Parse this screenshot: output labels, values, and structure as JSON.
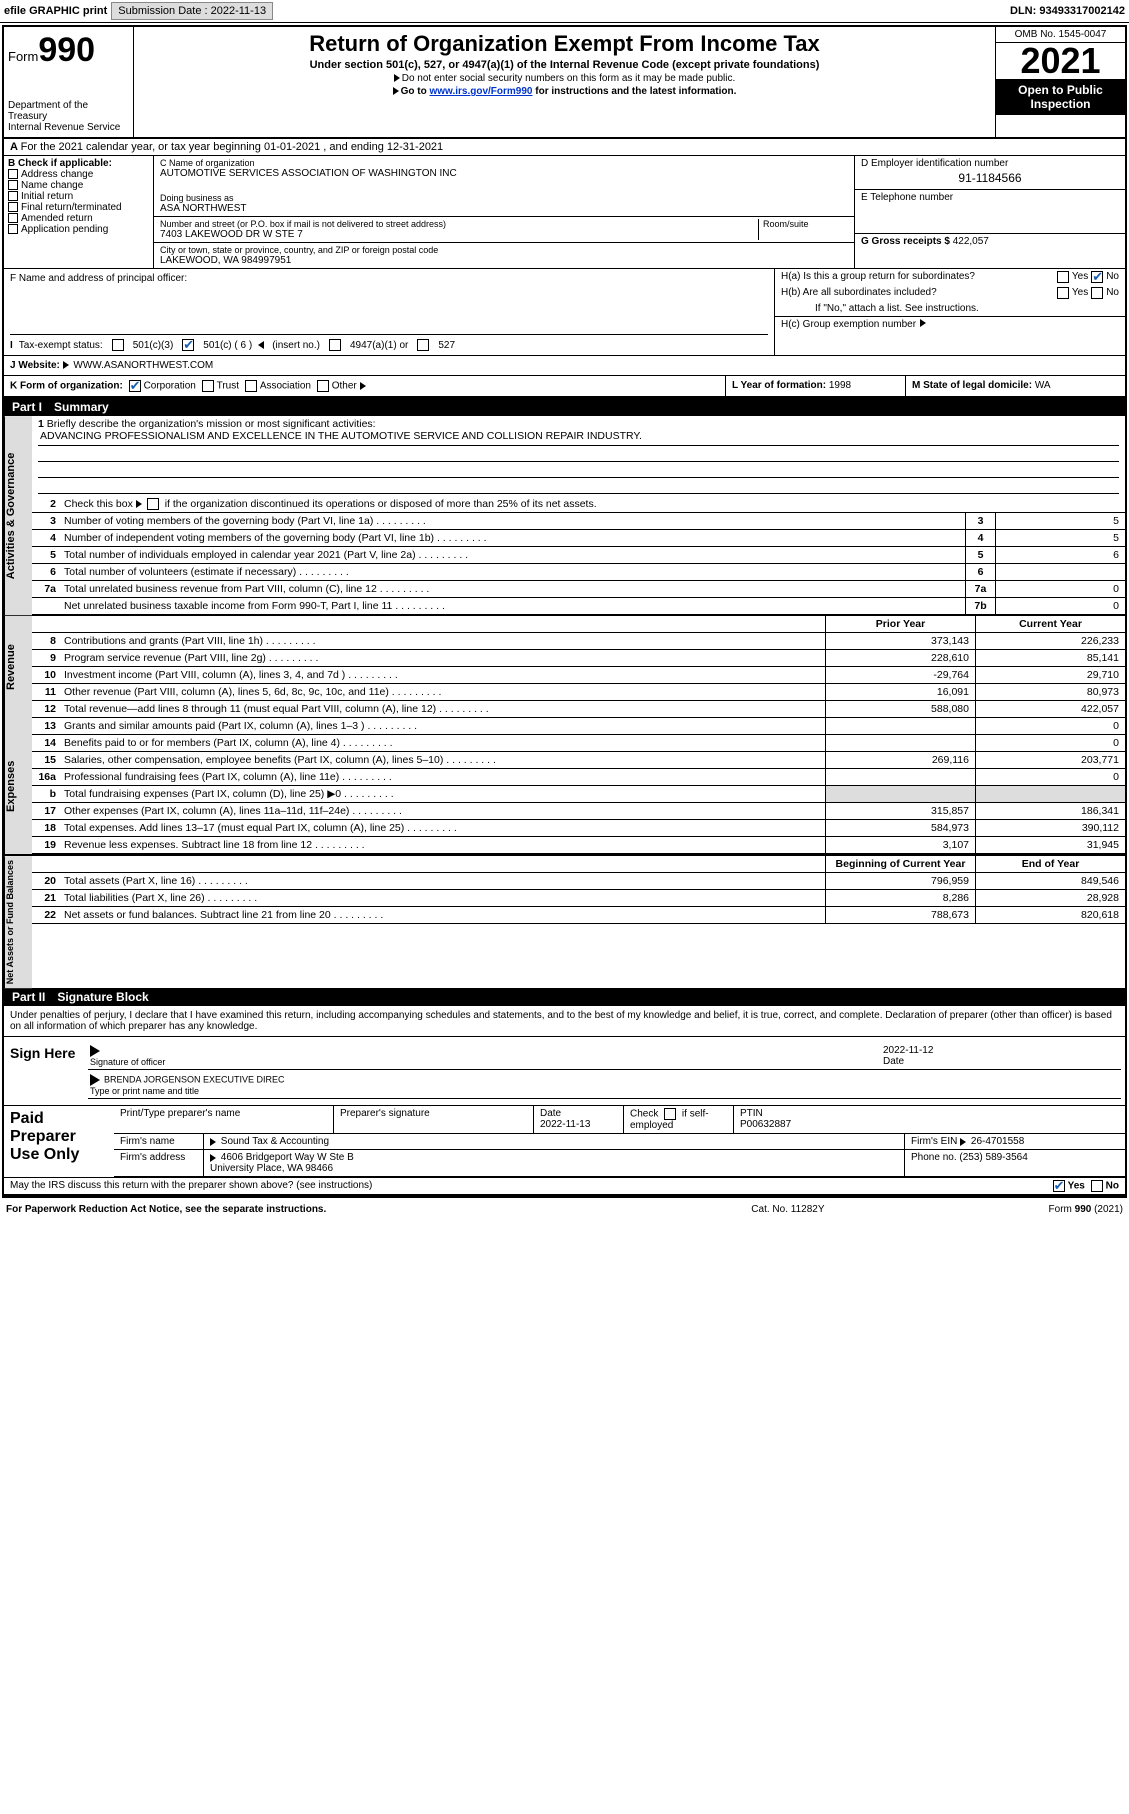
{
  "topbar": {
    "efile": "efile GRAPHIC print",
    "subm_lbl": "Submission Date :",
    "subm_date": "2022-11-13",
    "dln": "DLN: 93493317002142"
  },
  "hdr": {
    "form": "Form",
    "num": "990",
    "dept": "Department of the Treasury",
    "irs": "Internal Revenue Service",
    "title": "Return of Organization Exempt From Income Tax",
    "sub": "Under section 501(c), 527, or 4947(a)(1) of the Internal Revenue Code (except private foundations)",
    "note1": "Do not enter social security numbers on this form as it may be made public.",
    "note2_pre": "Go to ",
    "note2_link": "www.irs.gov/Form990",
    "note2_post": " for instructions and the latest information.",
    "omb": "OMB No. 1545-0047",
    "year": "2021",
    "open": "Open to Public Inspection"
  },
  "A": {
    "text": "For the 2021 calendar year, or tax year beginning 01-01-2021    , and ending 12-31-2021"
  },
  "B": {
    "hdr": "B Check if applicable:",
    "items": [
      "Address change",
      "Name change",
      "Initial return",
      "Final return/terminated",
      "Amended return",
      "Application pending"
    ]
  },
  "C": {
    "name_lbl": "C Name of organization",
    "name": "AUTOMOTIVE SERVICES ASSOCIATION OF WASHINGTON INC",
    "dba_lbl": "Doing business as",
    "dba": "ASA NORTHWEST",
    "addr_lbl": "Number and street (or P.O. box if mail is not delivered to street address)",
    "room_lbl": "Room/suite",
    "addr": "7403 LAKEWOOD DR W STE 7",
    "city_lbl": "City or town, state or province, country, and ZIP or foreign postal code",
    "city": "LAKEWOOD, WA  984997951"
  },
  "D": {
    "lbl": "D Employer identification number",
    "val": "91-1184566"
  },
  "E": {
    "lbl": "E Telephone number",
    "val": ""
  },
  "G": {
    "lbl": "G Gross receipts $",
    "val": "422,057"
  },
  "F": {
    "lbl": "F  Name and address of principal officer:"
  },
  "H": {
    "a": "H(a)  Is this a group return for subordinates?",
    "a_no": "No",
    "a_yes": "Yes",
    "b": "H(b)  Are all subordinates included?",
    "b_yes": "Yes",
    "b_no": "No",
    "b_note": "If \"No,\" attach a list. See instructions.",
    "c": "H(c)  Group exemption number"
  },
  "I": {
    "lbl": "Tax-exempt status:",
    "o1": "501(c)(3)",
    "o2": "501(c) ( 6 )",
    "ins": "(insert no.)",
    "o3": "4947(a)(1) or",
    "o4": "527"
  },
  "J": {
    "lbl": "Website:",
    "val": "WWW.ASANORTHWEST.COM"
  },
  "K": {
    "lbl": "K Form of organization:",
    "c": "Corporation",
    "t": "Trust",
    "a": "Association",
    "o": "Other"
  },
  "L": {
    "lbl": "L Year of formation:",
    "val": "1998"
  },
  "M": {
    "lbl": "M State of legal domicile:",
    "val": "WA"
  },
  "parts": {
    "p1": "Part I",
    "p1t": "Summary",
    "p2": "Part II",
    "p2t": "Signature Block"
  },
  "sections": {
    "gov": "Activities & Governance",
    "rev": "Revenue",
    "exp": "Expenses",
    "net": "Net Assets or Fund Balances"
  },
  "s1": {
    "l1": "Briefly describe the organization's mission or most significant activities:",
    "l1v": "ADVANCING PROFESSIONALISM AND EXCELLENCE IN THE AUTOMOTIVE SERVICE AND COLLISION REPAIR INDUSTRY.",
    "l2": "Check this box     if the organization discontinued its operations or disposed of more than 25% of its net assets.",
    "rows": [
      {
        "n": "3",
        "t": "Number of voting members of the governing body (Part VI, line 1a)",
        "b": "3",
        "v": "5"
      },
      {
        "n": "4",
        "t": "Number of independent voting members of the governing body (Part VI, line 1b)",
        "b": "4",
        "v": "5"
      },
      {
        "n": "5",
        "t": "Total number of individuals employed in calendar year 2021 (Part V, line 2a)",
        "b": "5",
        "v": "6"
      },
      {
        "n": "6",
        "t": "Total number of volunteers (estimate if necessary)",
        "b": "6",
        "v": ""
      },
      {
        "n": "7a",
        "t": "Total unrelated business revenue from Part VIII, column (C), line 12",
        "b": "7a",
        "v": "0"
      },
      {
        "n": "",
        "t": "Net unrelated business taxable income from Form 990-T, Part I, line 11",
        "b": "7b",
        "v": "0"
      }
    ],
    "colh": {
      "py": "Prior Year",
      "cy": "Current Year",
      "bcy": "Beginning of Current Year",
      "eoy": "End of Year"
    },
    "rev": [
      {
        "n": "8",
        "t": "Contributions and grants (Part VIII, line 1h)",
        "p": "373,143",
        "c": "226,233"
      },
      {
        "n": "9",
        "t": "Program service revenue (Part VIII, line 2g)",
        "p": "228,610",
        "c": "85,141"
      },
      {
        "n": "10",
        "t": "Investment income (Part VIII, column (A), lines 3, 4, and 7d )",
        "p": "-29,764",
        "c": "29,710"
      },
      {
        "n": "11",
        "t": "Other revenue (Part VIII, column (A), lines 5, 6d, 8c, 9c, 10c, and 11e)",
        "p": "16,091",
        "c": "80,973"
      },
      {
        "n": "12",
        "t": "Total revenue—add lines 8 through 11 (must equal Part VIII, column (A), line 12)",
        "p": "588,080",
        "c": "422,057"
      }
    ],
    "exp": [
      {
        "n": "13",
        "t": "Grants and similar amounts paid (Part IX, column (A), lines 1–3 )",
        "p": "",
        "c": "0"
      },
      {
        "n": "14",
        "t": "Benefits paid to or for members (Part IX, column (A), line 4)",
        "p": "",
        "c": "0"
      },
      {
        "n": "15",
        "t": "Salaries, other compensation, employee benefits (Part IX, column (A), lines 5–10)",
        "p": "269,116",
        "c": "203,771"
      },
      {
        "n": "16a",
        "t": "Professional fundraising fees (Part IX, column (A), line 11e)",
        "p": "",
        "c": "0"
      },
      {
        "n": "b",
        "t": "Total fundraising expenses (Part IX, column (D), line 25) ▶0",
        "p": "",
        "c": ""
      },
      {
        "n": "17",
        "t": "Other expenses (Part IX, column (A), lines 11a–11d, 11f–24e)",
        "p": "315,857",
        "c": "186,341"
      },
      {
        "n": "18",
        "t": "Total expenses. Add lines 13–17 (must equal Part IX, column (A), line 25)",
        "p": "584,973",
        "c": "390,112"
      },
      {
        "n": "19",
        "t": "Revenue less expenses. Subtract line 18 from line 12",
        "p": "3,107",
        "c": "31,945"
      }
    ],
    "net": [
      {
        "n": "20",
        "t": "Total assets (Part X, line 16)",
        "p": "796,959",
        "c": "849,546"
      },
      {
        "n": "21",
        "t": "Total liabilities (Part X, line 26)",
        "p": "8,286",
        "c": "28,928"
      },
      {
        "n": "22",
        "t": "Net assets or fund balances. Subtract line 21 from line 20",
        "p": "788,673",
        "c": "820,618"
      }
    ]
  },
  "sig": {
    "decl": "Under penalties of perjury, I declare that I have examined this return, including accompanying schedules and statements, and to the best of my knowledge and belief, it is true, correct, and complete. Declaration of preparer (other than officer) is based on all information of which preparer has any knowledge.",
    "here": "Sign Here",
    "sigoff": "Signature of officer",
    "date": "2022-11-12",
    "datel": "Date",
    "name": "BRENDA JORGENSON  EXECUTIVE DIREC",
    "namel": "Type or print name and title"
  },
  "paid": {
    "lbl": "Paid Preparer Use Only",
    "h": [
      "Print/Type preparer's name",
      "Preparer's signature",
      "Date",
      "",
      "PTIN"
    ],
    "r1": {
      "date": "2022-11-13",
      "chk": "Check",
      "if": "if self-employed",
      "ptin": "P00632887"
    },
    "r2": {
      "l": "Firm's name",
      "v": "Sound Tax & Accounting",
      "einl": "Firm's EIN",
      "ein": "26-4701558"
    },
    "r3": {
      "l": "Firm's address",
      "v": "4606 Bridgeport Way W Ste B",
      "phl": "Phone no.",
      "ph": "(253) 589-3564"
    },
    "r4": "University Place, WA  98466"
  },
  "discuss": {
    "q": "May the IRS discuss this return with the preparer shown above? (see instructions)",
    "yes": "Yes",
    "no": "No"
  },
  "foot": {
    "l": "For Paperwork Reduction Act Notice, see the separate instructions.",
    "c": "Cat. No. 11282Y",
    "r": "Form 990 (2021)"
  }
}
